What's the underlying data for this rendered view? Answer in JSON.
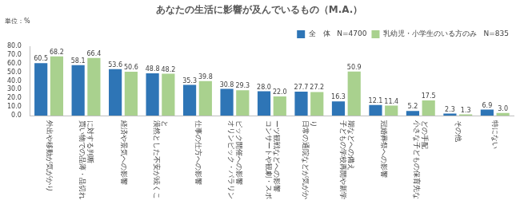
{
  "chart_data": {
    "type": "bar",
    "title": "あなたの生活に影響が及んでいるもの（M.A.）",
    "subtitle": "単位：%",
    "categories": [
      "外出や移動が気がかり",
      "買い物での品薄・品切れに対する判断",
      "経済や景気への影響",
      "漠然とした不安が続くこと",
      "仕事の仕方への影響",
      "オリンピック・パラリンピック開催への影響",
      "コンサートや観劇・スポーツ観戦などへの影響",
      "日常の通院などが気がかり",
      "子どもの学校再開や新学期などへの備え",
      "冠婚葬祭への影響",
      "小さな子どもの保育先などの手配",
      "その他",
      "特にない"
    ],
    "series": [
      {
        "name": "全　体",
        "sample": "N=4700",
        "color": "#2e75b6",
        "values": [
          60.5,
          58.1,
          53.6,
          48.8,
          35.3,
          30.8,
          28.0,
          27.7,
          16.3,
          12.1,
          5.2,
          2.3,
          6.9
        ],
        "value_labels": [
          "60.5",
          "58.1",
          "53.6",
          "48.8",
          "35.3",
          "30.8",
          "28.0",
          "27.7",
          "16.3",
          "12.1",
          "5.2",
          "2.3",
          "6.9"
        ]
      },
      {
        "name": "乳幼児・小学生のいる方のみ",
        "sample": "N=835",
        "color": "#a9d18e",
        "values": [
          68.2,
          66.4,
          50.6,
          48.2,
          39.8,
          29.3,
          22.0,
          27.2,
          50.9,
          11.4,
          17.5,
          1.3,
          3.0
        ],
        "value_labels": [
          "68.2",
          "66.4",
          "50.6",
          "48.2",
          "39.8",
          "29.3",
          "22.0",
          "27.2",
          "50.9",
          "11.4",
          "17.5",
          "1.3",
          "3.0"
        ]
      }
    ],
    "ylim": [
      0,
      80
    ],
    "yticks": [
      {
        "value": 0,
        "label": "0.0"
      },
      {
        "value": 10,
        "label": "10.0"
      },
      {
        "value": 20,
        "label": "20.0"
      },
      {
        "value": 30,
        "label": "30.0"
      },
      {
        "value": 40,
        "label": "40.0"
      },
      {
        "value": 50,
        "label": "50.0"
      },
      {
        "value": 60,
        "label": "60.0"
      },
      {
        "value": 70,
        "label": "70.0"
      },
      {
        "value": 80,
        "label": "80.0"
      }
    ],
    "grid": false,
    "legend": "top right",
    "data_labels": true
  }
}
